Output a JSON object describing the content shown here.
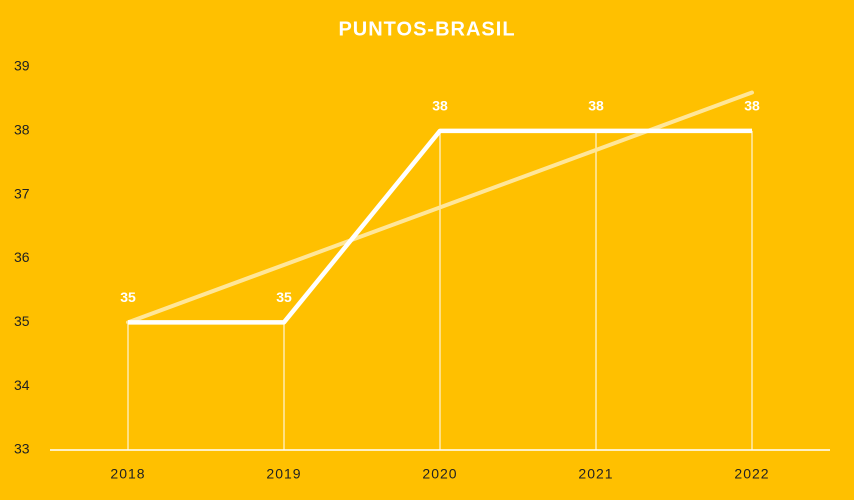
{
  "chart_data": {
    "type": "line",
    "title": "PUNTOS-BRASIL",
    "categories": [
      "2018",
      "2019",
      "2020",
      "2021",
      "2022"
    ],
    "values": [
      35,
      35,
      38,
      38,
      38
    ],
    "color": "#ffffff",
    "ylim": [
      33,
      39
    ],
    "yticks": [
      33,
      34,
      35,
      36,
      37,
      38,
      39
    ],
    "trendline": "linear",
    "drop_lines": true,
    "background": "#ffc000"
  }
}
